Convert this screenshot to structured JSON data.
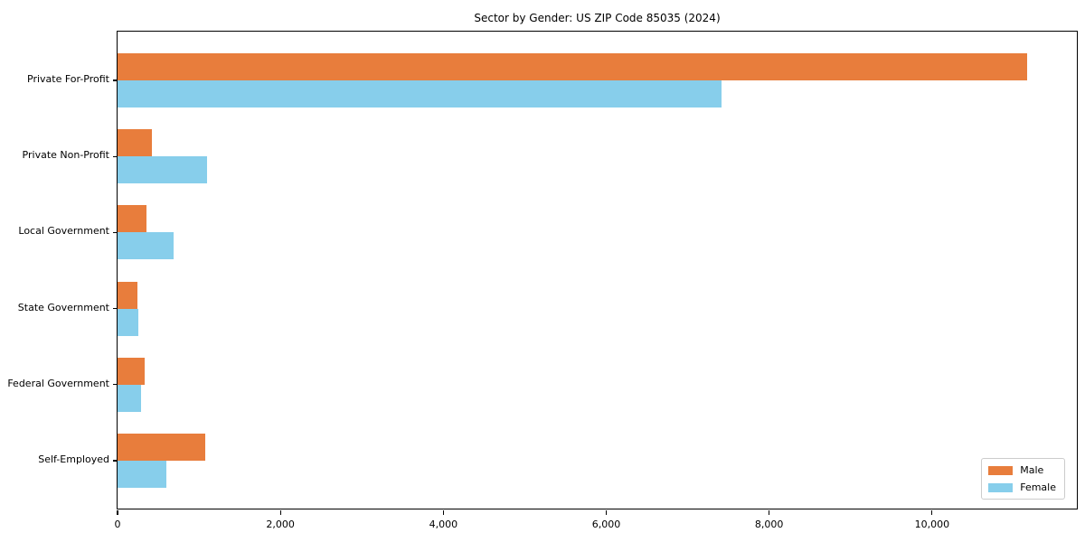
{
  "title": "Sector by Gender: US ZIP Code 85035 (2024)",
  "chart_data": {
    "type": "bar",
    "orientation": "horizontal",
    "title": "Sector by Gender: US ZIP Code 85035 (2024)",
    "categories": [
      "Private For-Profit",
      "Private Non-Profit",
      "Local Government",
      "State Government",
      "Federal Government",
      "Self-Employed"
    ],
    "series": [
      {
        "name": "Male",
        "color": "#E87D3C",
        "values": [
          11170,
          420,
          350,
          240,
          335,
          1080
        ]
      },
      {
        "name": "Female",
        "color": "#87CEEB",
        "values": [
          7410,
          1100,
          690,
          255,
          290,
          600
        ]
      }
    ],
    "xlabel": "",
    "ylabel": "",
    "xlim": [
      0,
      11800
    ],
    "xticks": [
      0,
      2000,
      4000,
      6000,
      8000,
      10000
    ],
    "xtick_labels": [
      "0",
      "2,000",
      "4,000",
      "6,000",
      "8,000",
      "10,000"
    ],
    "grid": false,
    "legend_position": "lower right"
  },
  "legend": {
    "items": [
      {
        "label": "Male",
        "color": "#E87D3C"
      },
      {
        "label": "Female",
        "color": "#87CEEB"
      }
    ]
  },
  "colors": {
    "axis": "#000000",
    "legend_border": "#cccccc",
    "background": "#ffffff"
  }
}
